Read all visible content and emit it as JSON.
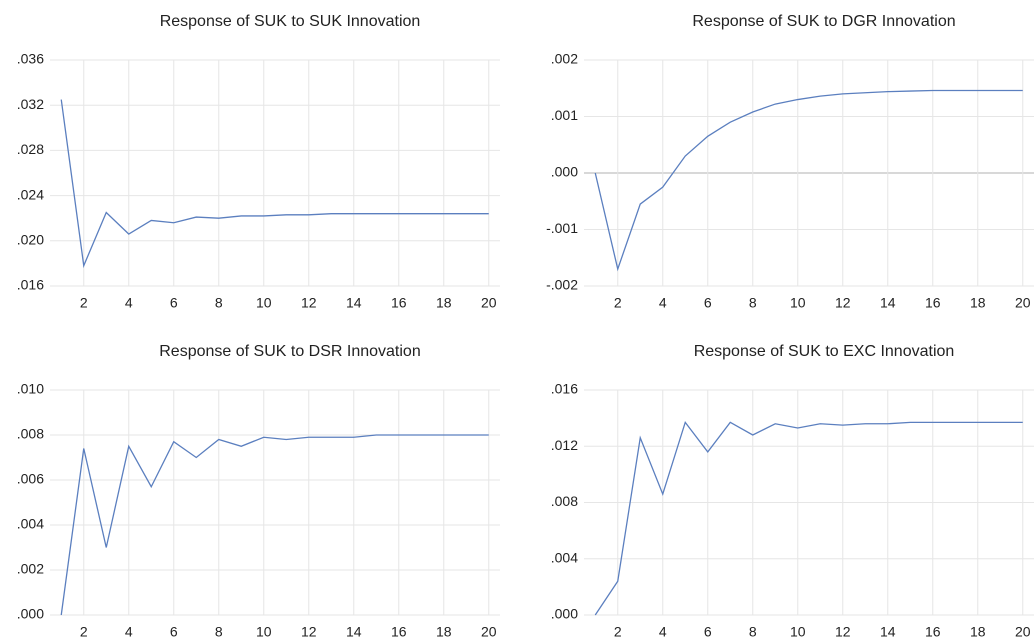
{
  "chart_data": [
    {
      "type": "line",
      "title": "Response of SUK to SUK Innovation",
      "x": [
        1,
        2,
        3,
        4,
        5,
        6,
        7,
        8,
        9,
        10,
        11,
        12,
        13,
        14,
        15,
        16,
        17,
        18,
        19,
        20
      ],
      "series": [
        {
          "color": "#5b7fbf",
          "values": [
            0.0325,
            0.0178,
            0.0225,
            0.0206,
            0.0218,
            0.0216,
            0.0221,
            0.022,
            0.0222,
            0.0222,
            0.0223,
            0.0223,
            0.0224,
            0.0224,
            0.0224,
            0.0224,
            0.0224,
            0.0224,
            0.0224,
            0.0224
          ]
        }
      ],
      "xlim": [
        0.5,
        20.5
      ],
      "xticks": [
        2,
        4,
        6,
        8,
        10,
        12,
        14,
        16,
        18,
        20
      ],
      "ylim": [
        0.016,
        0.036
      ],
      "yticks": [
        {
          "value": 0.016,
          "label": ".016"
        },
        {
          "value": 0.02,
          "label": ".020"
        },
        {
          "value": 0.024,
          "label": ".024"
        },
        {
          "value": 0.028,
          "label": ".028"
        },
        {
          "value": 0.032,
          "label": ".032"
        },
        {
          "value": 0.036,
          "label": ".036"
        }
      ],
      "grid": true
    },
    {
      "type": "line",
      "title": "Response of SUK to DGR Innovation",
      "x": [
        1,
        2,
        3,
        4,
        5,
        6,
        7,
        8,
        9,
        10,
        11,
        12,
        13,
        14,
        15,
        16,
        17,
        18,
        19,
        20
      ],
      "series": [
        {
          "color": "#5b7fbf",
          "values": [
            0,
            -0.0017,
            -0.00055,
            -0.00025,
            0.0003,
            0.00065,
            0.0009,
            0.00108,
            0.00122,
            0.0013,
            0.00136,
            0.0014,
            0.00142,
            0.00144,
            0.00145,
            0.00146,
            0.00146,
            0.00146,
            0.00146,
            0.00146
          ]
        }
      ],
      "xlim": [
        0.5,
        20.5
      ],
      "xticks": [
        2,
        4,
        6,
        8,
        10,
        12,
        14,
        16,
        18,
        20
      ],
      "ylim": [
        -0.002,
        0.002
      ],
      "yticks": [
        {
          "value": -0.002,
          "label": "-.002"
        },
        {
          "value": -0.001,
          "label": "-.001"
        },
        {
          "value": 0,
          "label": ".000"
        },
        {
          "value": 0.001,
          "label": ".001"
        },
        {
          "value": 0.002,
          "label": ".002"
        }
      ],
      "grid": true
    },
    {
      "type": "line",
      "title": "Response of SUK to DSR Innovation",
      "x": [
        1,
        2,
        3,
        4,
        5,
        6,
        7,
        8,
        9,
        10,
        11,
        12,
        13,
        14,
        15,
        16,
        17,
        18,
        19,
        20
      ],
      "series": [
        {
          "color": "#5b7fbf",
          "values": [
            0,
            0.0074,
            0.003,
            0.0075,
            0.0057,
            0.0077,
            0.007,
            0.0078,
            0.0075,
            0.0079,
            0.0078,
            0.0079,
            0.0079,
            0.0079,
            0.008,
            0.008,
            0.008,
            0.008,
            0.008,
            0.008
          ]
        }
      ],
      "xlim": [
        0.5,
        20.5
      ],
      "xticks": [
        2,
        4,
        6,
        8,
        10,
        12,
        14,
        16,
        18,
        20
      ],
      "ylim": [
        0,
        0.01
      ],
      "yticks": [
        {
          "value": 0,
          "label": ".000"
        },
        {
          "value": 0.002,
          "label": ".002"
        },
        {
          "value": 0.004,
          "label": ".004"
        },
        {
          "value": 0.006,
          "label": ".006"
        },
        {
          "value": 0.008,
          "label": ".008"
        },
        {
          "value": 0.01,
          "label": ".010"
        }
      ],
      "grid": true
    },
    {
      "type": "line",
      "title": "Response of SUK to EXC Innovation",
      "x": [
        1,
        2,
        3,
        4,
        5,
        6,
        7,
        8,
        9,
        10,
        11,
        12,
        13,
        14,
        15,
        16,
        17,
        18,
        19,
        20
      ],
      "series": [
        {
          "color": "#5b7fbf",
          "values": [
            0,
            0.0024,
            0.0126,
            0.0086,
            0.0137,
            0.0116,
            0.0137,
            0.0128,
            0.0136,
            0.0133,
            0.0136,
            0.0135,
            0.0136,
            0.0136,
            0.0137,
            0.0137,
            0.0137,
            0.0137,
            0.0137,
            0.0137
          ]
        }
      ],
      "xlim": [
        0.5,
        20.5
      ],
      "xticks": [
        2,
        4,
        6,
        8,
        10,
        12,
        14,
        16,
        18,
        20
      ],
      "ylim": [
        0,
        0.016
      ],
      "yticks": [
        {
          "value": 0,
          "label": ".000"
        },
        {
          "value": 0.004,
          "label": ".004"
        },
        {
          "value": 0.008,
          "label": ".008"
        },
        {
          "value": 0.012,
          "label": ".012"
        },
        {
          "value": 0.016,
          "label": ".016"
        }
      ],
      "grid": true
    }
  ]
}
